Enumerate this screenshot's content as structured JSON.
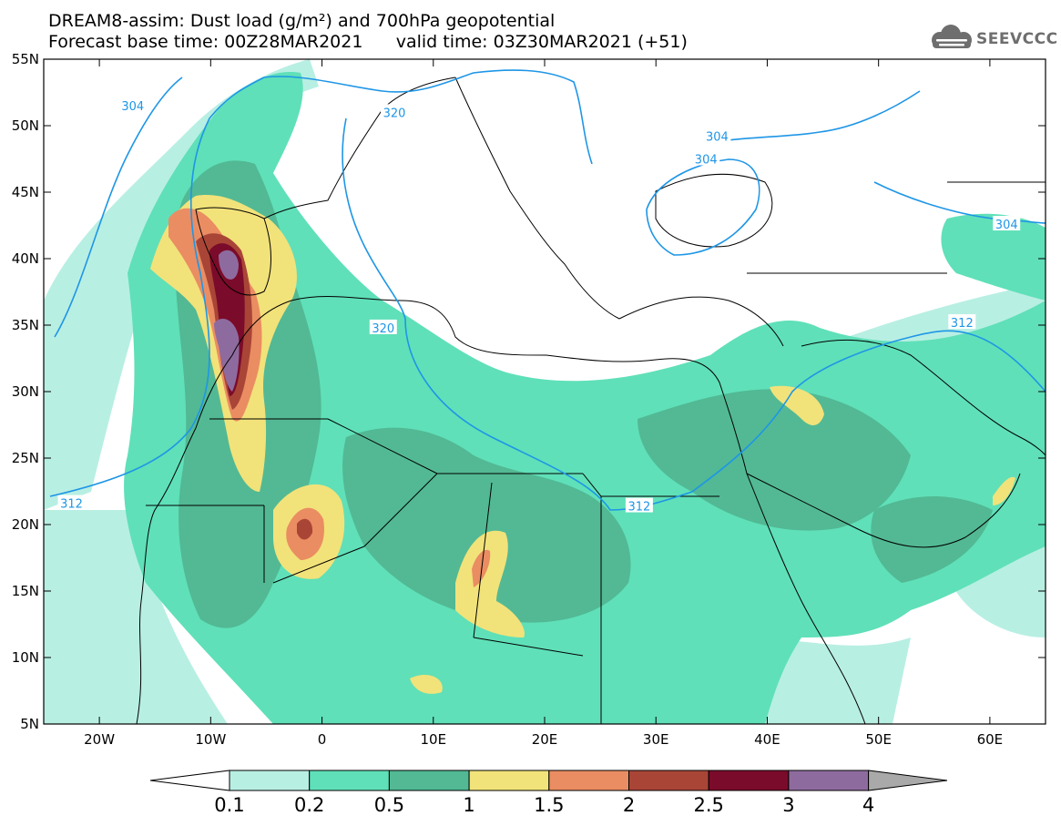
{
  "header": {
    "title": "DREAM8-assim: Dust load (g/m²) and 700hPa geopotential",
    "base_time_label": "Forecast base time: 00Z28MAR2021",
    "valid_time_label": "valid time: 03Z30MAR2021 (+51)"
  },
  "brand": {
    "name": "SEEVCCC",
    "logo_icon": "cloud-logo-icon"
  },
  "map": {
    "lon_range": [
      -25,
      65
    ],
    "lat_range": [
      5,
      55
    ],
    "lat_ticks": [
      {
        "value": 55,
        "label": "55N"
      },
      {
        "value": 50,
        "label": "50N"
      },
      {
        "value": 45,
        "label": "45N"
      },
      {
        "value": 40,
        "label": "40N"
      },
      {
        "value": 35,
        "label": "35N"
      },
      {
        "value": 30,
        "label": "30N"
      },
      {
        "value": 25,
        "label": "25N"
      },
      {
        "value": 20,
        "label": "20N"
      },
      {
        "value": 15,
        "label": "15N"
      },
      {
        "value": 10,
        "label": "10N"
      },
      {
        "value": 5,
        "label": "5N"
      }
    ],
    "lon_ticks": [
      {
        "value": -20,
        "label": "20W"
      },
      {
        "value": -10,
        "label": "10W"
      },
      {
        "value": 0,
        "label": "0"
      },
      {
        "value": 10,
        "label": "10E"
      },
      {
        "value": 20,
        "label": "20E"
      },
      {
        "value": 30,
        "label": "30E"
      },
      {
        "value": 40,
        "label": "40E"
      },
      {
        "value": 50,
        "label": "50E"
      },
      {
        "value": 60,
        "label": "60E"
      }
    ],
    "contour_labels": [
      {
        "text": "304",
        "lon": -17,
        "lat": 51.5
      },
      {
        "text": "320",
        "lon": 6.5,
        "lat": 51.0
      },
      {
        "text": "304",
        "lon": 35.5,
        "lat": 49.2
      },
      {
        "text": "304",
        "lon": 34.5,
        "lat": 47.5
      },
      {
        "text": "304",
        "lon": 61.5,
        "lat": 42.6
      },
      {
        "text": "320",
        "lon": 5.5,
        "lat": 34.8
      },
      {
        "text": "312",
        "lon": 57.5,
        "lat": 35.2
      },
      {
        "text": "312",
        "lon": -22.5,
        "lat": 21.6
      },
      {
        "text": "312",
        "lon": 28.5,
        "lat": 21.4
      }
    ],
    "colorbar": {
      "levels": [
        "0.1",
        "0.2",
        "0.5",
        "1",
        "1.5",
        "2",
        "2.5",
        "3",
        "4"
      ],
      "colors": [
        "#ffffff",
        "#b8efe3",
        "#5fe0b8",
        "#52b994",
        "#f2e27a",
        "#ea8d62",
        "#a94537",
        "#7b0b2a",
        "#8e6b9f",
        "#a9a9a9"
      ]
    }
  }
}
